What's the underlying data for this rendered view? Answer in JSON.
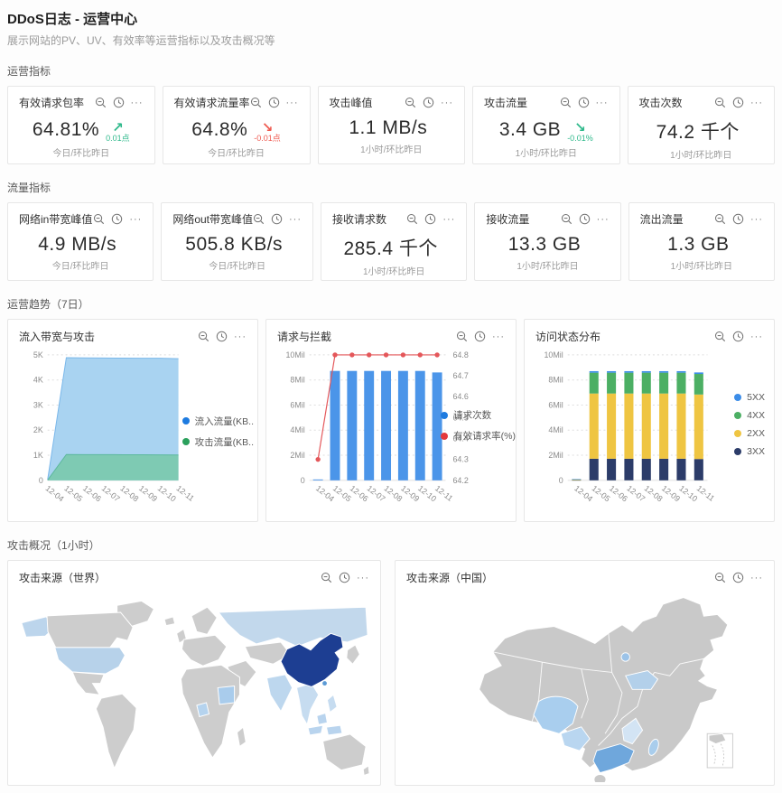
{
  "header": {
    "title": "DDoS日志 - 运营中心",
    "subtitle": "展示网站的PV、UV、有效率等运营指标以及攻击概况等"
  },
  "sections": {
    "ops": "运营指标",
    "traffic": "流量指标",
    "trend": "运营趋势（7日）",
    "attack": "攻击概况（1小时）"
  },
  "icons": {
    "magnifier": "magnifier-icon",
    "clock": "clock-icon",
    "ellipsis": "···"
  },
  "metric_sections": [
    {
      "label": "运营指标",
      "cards": [
        {
          "title": "有效请求包率",
          "value": "64.81%",
          "trend": {
            "arrow": "↗",
            "color": "#2fb98b",
            "delta": "0.01点"
          },
          "footer": "今日/环比昨日"
        },
        {
          "title": "有效请求流量率",
          "value": "64.8%",
          "trend": {
            "arrow": "↘",
            "color": "#ef5a50",
            "delta": "-0.01点"
          },
          "footer": "今日/环比昨日"
        },
        {
          "title": "攻击峰值",
          "value": "1.1 MB/s",
          "footer": "1小时/环比昨日"
        },
        {
          "title": "攻击流量",
          "value": "3.4 GB",
          "trend": {
            "arrow": "↘",
            "color": "#2fb98b",
            "delta": "-0.01%"
          },
          "footer": "1小时/环比昨日"
        },
        {
          "title": "攻击次数",
          "value": "74.2 千个",
          "footer": "1小时/环比昨日"
        }
      ]
    },
    {
      "label": "流量指标",
      "cards": [
        {
          "title": "网络in带宽峰值",
          "value": "4.9 MB/s",
          "footer": "今日/环比昨日"
        },
        {
          "title": "网络out带宽峰值",
          "value": "505.8 KB/s",
          "footer": "今日/环比昨日"
        },
        {
          "title": "接收请求数",
          "value": "285.4 千个",
          "footer": "1小时/环比昨日"
        },
        {
          "title": "接收流量",
          "value": "13.3 GB",
          "footer": "1小时/环比昨日"
        },
        {
          "title": "流出流量",
          "value": "1.3 GB",
          "footer": "1小时/环比昨日"
        }
      ]
    }
  ],
  "chart_data": [
    {
      "type": "area",
      "title": "流入带宽与攻击",
      "x": [
        "12-04",
        "12-05",
        "12-06",
        "12-07",
        "12-08",
        "12-09",
        "12-10",
        "12-11"
      ],
      "ylim": [
        0,
        5000
      ],
      "yticks": [
        "0",
        "1K",
        "2K",
        "3K",
        "4K",
        "5K"
      ],
      "series": [
        {
          "name": "流入流量(KB..",
          "fill": "#a9d3f1",
          "stroke": "#79b7ea",
          "values": [
            30,
            4890,
            4880,
            4875,
            4870,
            4865,
            4865,
            4850
          ]
        },
        {
          "name": "攻击流量(KB..",
          "fill": "#7ecab3",
          "stroke": "#5cb89d",
          "values": [
            10,
            1030,
            1025,
            1025,
            1020,
            1020,
            1015,
            1010
          ]
        }
      ],
      "legend": [
        {
          "label": "流入流量(KB..",
          "color": "#1d7be0"
        },
        {
          "label": "攻击流量(KB..",
          "color": "#2ba05c"
        }
      ],
      "legend_top": "47%",
      "legend_right": "4px",
      "margins": {
        "l": 32,
        "r": 76,
        "t": 10,
        "b": 40
      }
    },
    {
      "type": "bar-line",
      "title": "请求与拦截",
      "x": [
        "12-04",
        "12-05",
        "12-06",
        "12-07",
        "12-08",
        "12-09",
        "12-10",
        "12-11"
      ],
      "ylim": [
        0,
        10
      ],
      "yticks": [
        "0",
        "2Mil",
        "4Mil",
        "6Mil",
        "8Mil",
        "10Mil"
      ],
      "rlim": [
        64.2,
        64.8
      ],
      "rticks": [
        "64.2",
        "64.3",
        "64.4",
        "64.5",
        "64.6",
        "64.7",
        "64.8"
      ],
      "bars": {
        "name": "请求次数",
        "color": "#4b95e9",
        "values": [
          0.07,
          8.72,
          8.72,
          8.72,
          8.72,
          8.72,
          8.72,
          8.6
        ]
      },
      "line": {
        "name": "有效请求率(%)",
        "color": "#e4575a",
        "values": [
          64.3,
          64.8,
          64.8,
          64.8,
          64.8,
          64.8,
          64.8,
          64.8
        ]
      },
      "legend": [
        {
          "label": "请求次数",
          "color": "#1d7be0"
        },
        {
          "label": "有效请求率(%)",
          "color": "#e4393c"
        }
      ],
      "legend_top": "44%",
      "legend_right": "0px",
      "margins": {
        "l": 36,
        "r": 66,
        "t": 10,
        "b": 40
      }
    },
    {
      "type": "stacked-bar",
      "title": "访问状态分布",
      "x": [
        "12-04",
        "12-05",
        "12-06",
        "12-07",
        "12-08",
        "12-09",
        "12-10",
        "12-11"
      ],
      "ylim": [
        0,
        10
      ],
      "yticks": [
        "0",
        "2Mil",
        "4Mil",
        "6Mil",
        "8Mil",
        "10Mil"
      ],
      "series": [
        {
          "name": "3XX",
          "color": "#2c3c69",
          "values": [
            0.015,
            1.72,
            1.72,
            1.72,
            1.72,
            1.72,
            1.72,
            1.7
          ]
        },
        {
          "name": "2XX",
          "color": "#efc542",
          "values": [
            0.05,
            5.2,
            5.2,
            5.2,
            5.2,
            5.2,
            5.2,
            5.14
          ]
        },
        {
          "name": "4XX",
          "color": "#4caf64",
          "values": [
            0.02,
            1.66,
            1.66,
            1.66,
            1.66,
            1.66,
            1.66,
            1.64
          ]
        },
        {
          "name": "5XX",
          "color": "#3c8de8",
          "values": [
            0.005,
            0.12,
            0.12,
            0.12,
            0.12,
            0.12,
            0.12,
            0.12
          ]
        }
      ],
      "legend": [
        {
          "label": "5XX",
          "color": "#3c8de8"
        },
        {
          "label": "4XX",
          "color": "#4caf64"
        },
        {
          "label": "2XX",
          "color": "#efc542"
        },
        {
          "label": "3XX",
          "color": "#2c3c69"
        }
      ],
      "legend_top": "36%",
      "legend_right": "10px",
      "margins": {
        "l": 36,
        "r": 62,
        "t": 10,
        "b": 40
      }
    }
  ],
  "maps": {
    "world": {
      "title": "攻击来源（世界）",
      "colors": {
        "land": "#cdcdcd",
        "stroke": "#ffffff",
        "russia": "#c2d8ec",
        "usa": "#b7d2ea",
        "alaska": "#bcd5ec",
        "india": "#bdd7ee",
        "sudan": "#a9ccec",
        "nigeria": "#b5d3ee",
        "sea": "#c6dcf0",
        "indonesia": "#b9d4ee",
        "philippines": "#c6dcf0",
        "china": "#1d3e92",
        "taiwan_dot": "#5c9bd6"
      }
    },
    "china": {
      "title": "攻击来源（中国）",
      "colors": {
        "land": "#c9c9c9",
        "stroke": "#ffffff",
        "sichuan": "#a9ceee",
        "guizhou": "#b9d6f0",
        "guangdong": "#6fa7dc",
        "shandong": "#b3d0ea",
        "beijing": "#9cc3e8",
        "fujian": "#d3e4f4",
        "taiwan": "#a9cdec",
        "inset_border": "#cccccc"
      }
    }
  }
}
